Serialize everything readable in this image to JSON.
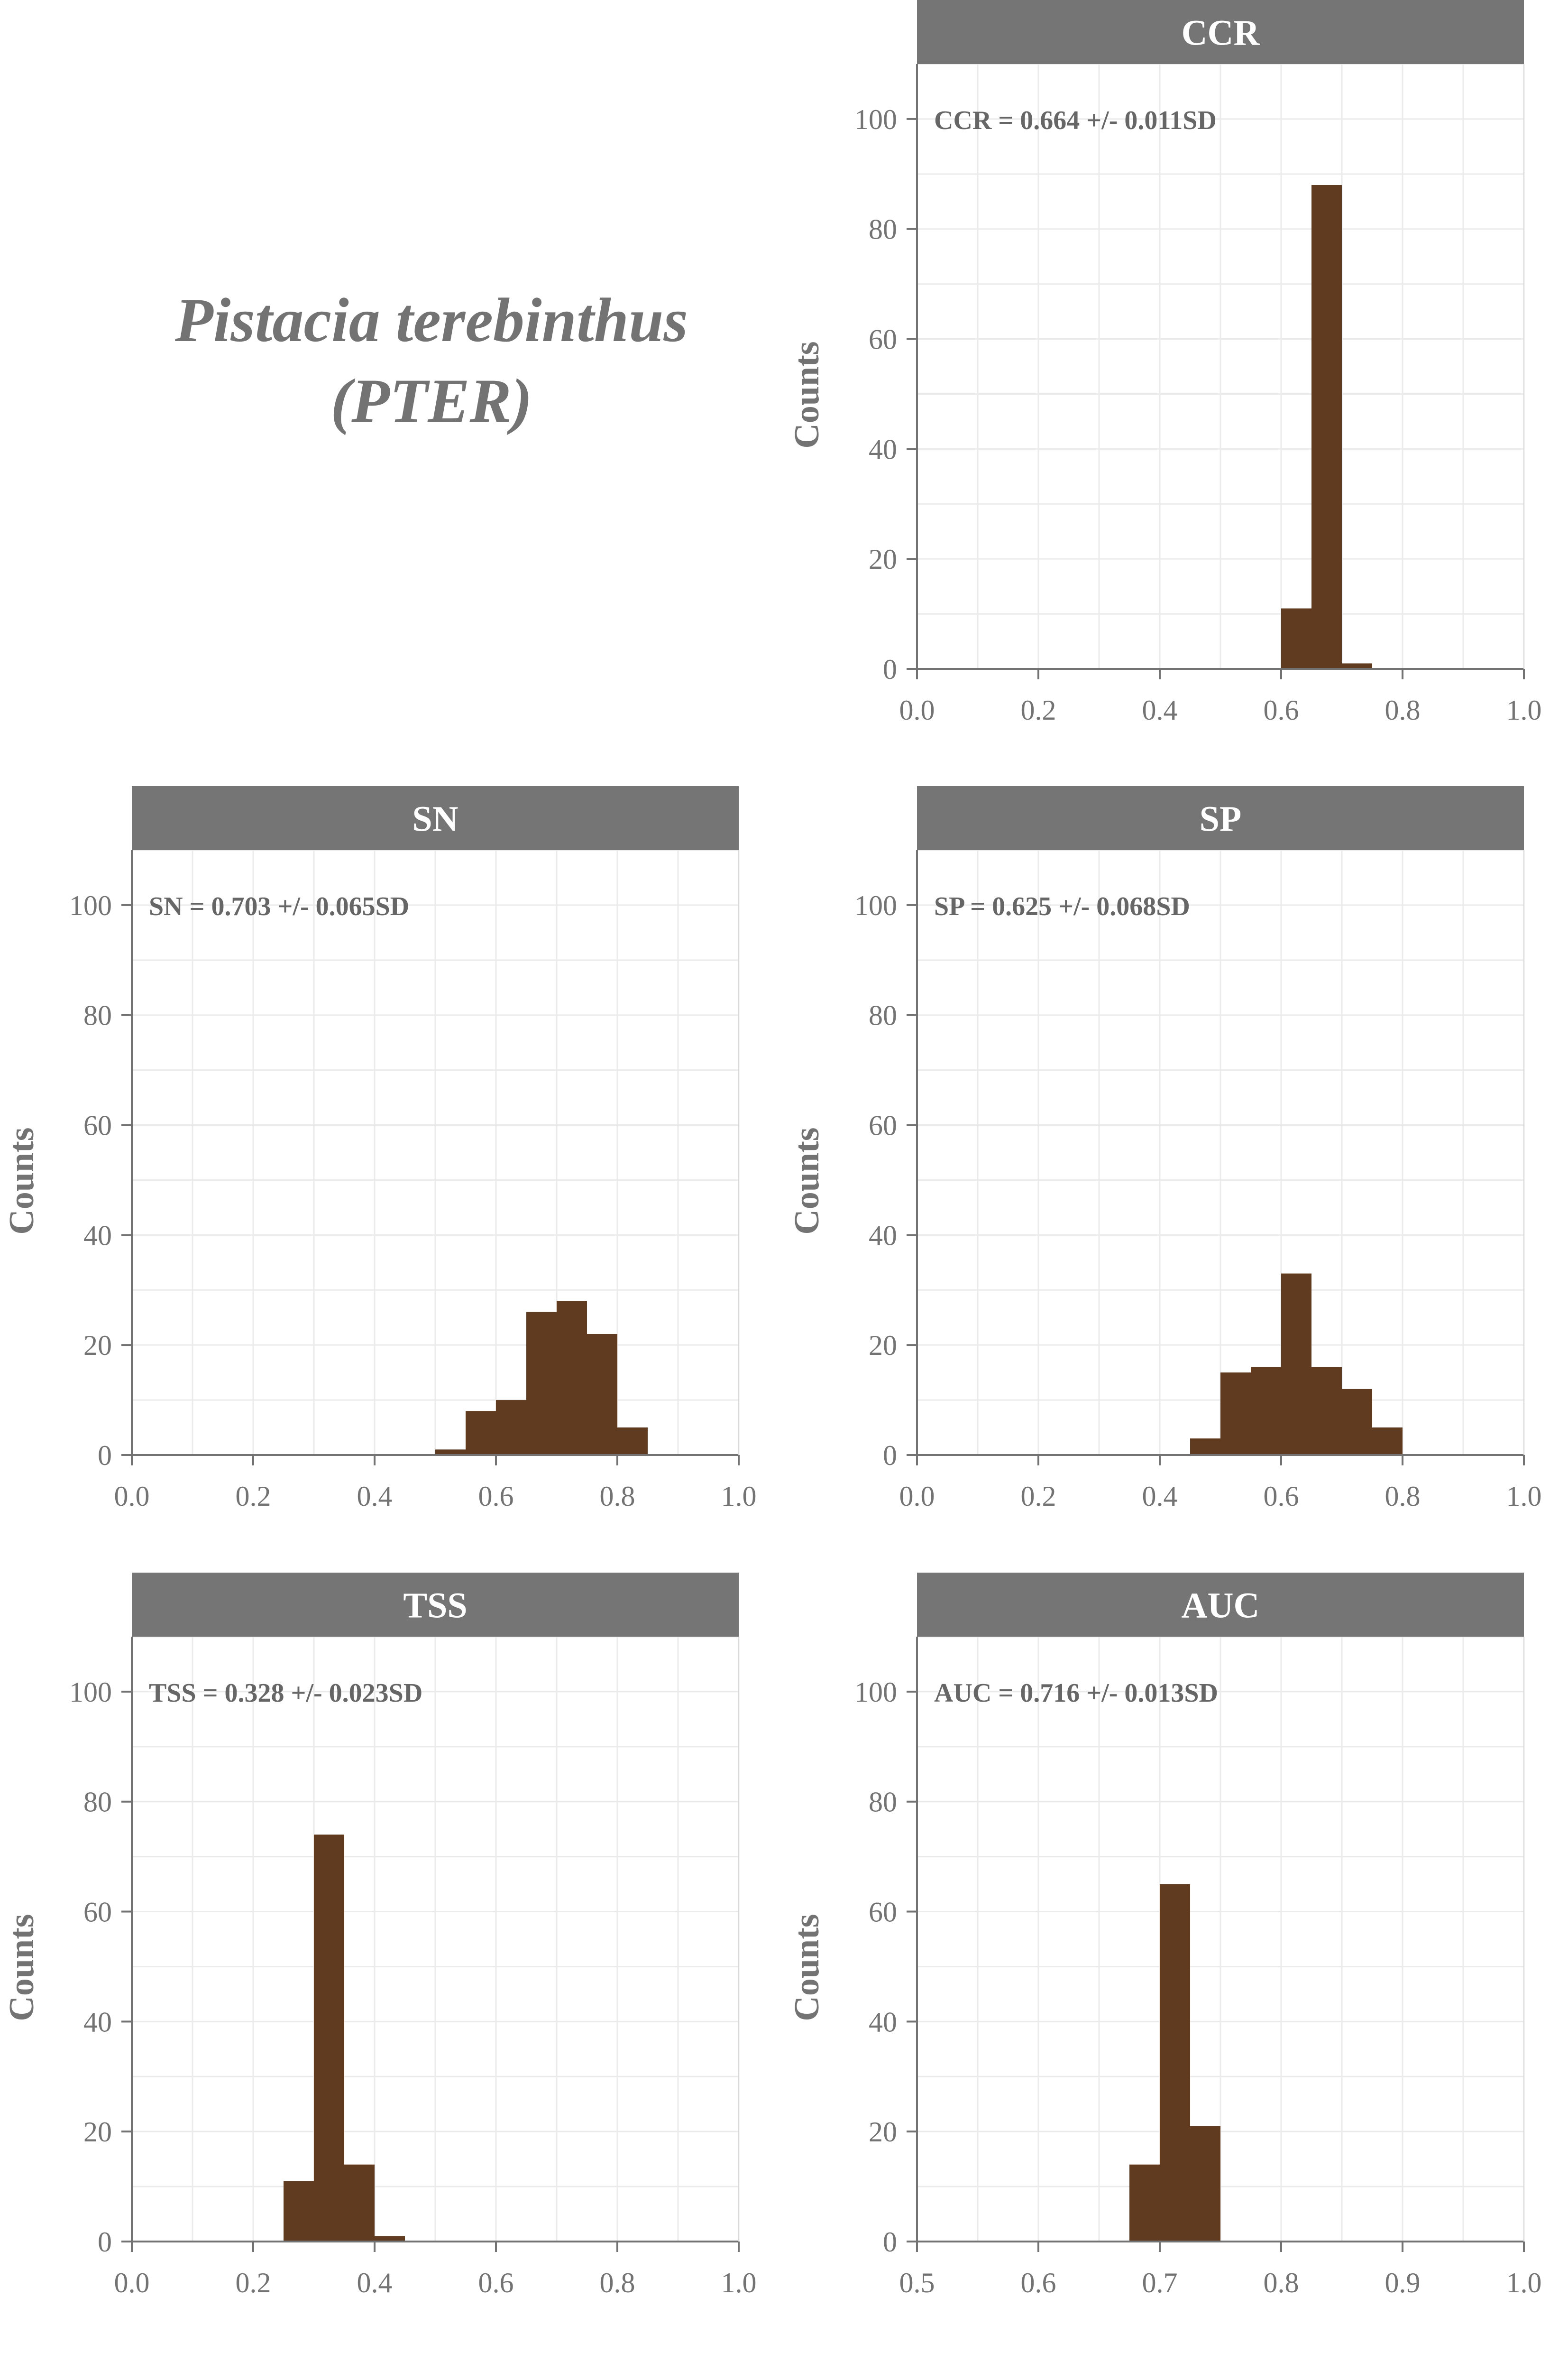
{
  "species": {
    "name": "Pistacia terebinthus",
    "code": "(PTER)"
  },
  "colors": {
    "bar": "#603B1F",
    "strip": "#757575",
    "strip_text": "#ffffff",
    "annotation": "#666666",
    "axis": "#737373",
    "grid": "#ebebeb"
  },
  "chart_data": [
    {
      "type": "bar",
      "title": "CCR",
      "annotation": "CCR = 0.664 +/- 0.011SD",
      "xlabel": "",
      "ylabel": "Counts",
      "xlim": [
        0.0,
        1.0
      ],
      "ylim": [
        0,
        110
      ],
      "x_ticks": [
        "0.0",
        "0.2",
        "0.4",
        "0.6",
        "0.8",
        "1.0"
      ],
      "y_ticks": [
        "0",
        "20",
        "40",
        "60",
        "80",
        "100"
      ],
      "grid": true,
      "bins": [
        {
          "x0": 0.6,
          "x1": 0.65,
          "count": 11
        },
        {
          "x0": 0.65,
          "x1": 0.7,
          "count": 88
        },
        {
          "x0": 0.7,
          "x1": 0.75,
          "count": 1
        }
      ]
    },
    {
      "type": "bar",
      "title": "SN",
      "annotation": "SN = 0.703 +/- 0.065SD",
      "xlabel": "",
      "ylabel": "Counts",
      "xlim": [
        0.0,
        1.0
      ],
      "ylim": [
        0,
        110
      ],
      "x_ticks": [
        "0.0",
        "0.2",
        "0.4",
        "0.6",
        "0.8",
        "1.0"
      ],
      "y_ticks": [
        "0",
        "20",
        "40",
        "60",
        "80",
        "100"
      ],
      "grid": true,
      "bins": [
        {
          "x0": 0.5,
          "x1": 0.55,
          "count": 1
        },
        {
          "x0": 0.55,
          "x1": 0.6,
          "count": 8
        },
        {
          "x0": 0.6,
          "x1": 0.65,
          "count": 10
        },
        {
          "x0": 0.65,
          "x1": 0.7,
          "count": 26
        },
        {
          "x0": 0.7,
          "x1": 0.75,
          "count": 28
        },
        {
          "x0": 0.75,
          "x1": 0.8,
          "count": 22
        },
        {
          "x0": 0.8,
          "x1": 0.85,
          "count": 5
        }
      ]
    },
    {
      "type": "bar",
      "title": "SP",
      "annotation": "SP = 0.625 +/- 0.068SD",
      "xlabel": "",
      "ylabel": "Counts",
      "xlim": [
        0.0,
        1.0
      ],
      "ylim": [
        0,
        110
      ],
      "x_ticks": [
        "0.0",
        "0.2",
        "0.4",
        "0.6",
        "0.8",
        "1.0"
      ],
      "y_ticks": [
        "0",
        "20",
        "40",
        "60",
        "80",
        "100"
      ],
      "grid": true,
      "bins": [
        {
          "x0": 0.45,
          "x1": 0.5,
          "count": 3
        },
        {
          "x0": 0.5,
          "x1": 0.55,
          "count": 15
        },
        {
          "x0": 0.55,
          "x1": 0.6,
          "count": 16
        },
        {
          "x0": 0.6,
          "x1": 0.65,
          "count": 33
        },
        {
          "x0": 0.65,
          "x1": 0.7,
          "count": 16
        },
        {
          "x0": 0.7,
          "x1": 0.75,
          "count": 12
        },
        {
          "x0": 0.75,
          "x1": 0.8,
          "count": 5
        }
      ]
    },
    {
      "type": "bar",
      "title": "TSS",
      "annotation": "TSS = 0.328 +/- 0.023SD",
      "xlabel": "",
      "ylabel": "Counts",
      "xlim": [
        0.0,
        1.0
      ],
      "ylim": [
        0,
        110
      ],
      "x_ticks": [
        "0.0",
        "0.2",
        "0.4",
        "0.6",
        "0.8",
        "1.0"
      ],
      "y_ticks": [
        "0",
        "20",
        "40",
        "60",
        "80",
        "100"
      ],
      "grid": true,
      "bins": [
        {
          "x0": 0.25,
          "x1": 0.3,
          "count": 11
        },
        {
          "x0": 0.3,
          "x1": 0.35,
          "count": 74
        },
        {
          "x0": 0.35,
          "x1": 0.4,
          "count": 14
        },
        {
          "x0": 0.4,
          "x1": 0.45,
          "count": 1
        }
      ]
    },
    {
      "type": "bar",
      "title": "AUC",
      "annotation": "AUC = 0.716 +/- 0.013SD",
      "xlabel": "",
      "ylabel": "Counts",
      "xlim": [
        0.5,
        1.0
      ],
      "ylim": [
        0,
        110
      ],
      "x_ticks": [
        "0.5",
        "0.6",
        "0.7",
        "0.8",
        "0.9",
        "1.0"
      ],
      "y_ticks": [
        "0",
        "20",
        "40",
        "60",
        "80",
        "100"
      ],
      "grid": true,
      "bins": [
        {
          "x0": 0.675,
          "x1": 0.7,
          "count": 14
        },
        {
          "x0": 0.7,
          "x1": 0.725,
          "count": 65
        },
        {
          "x0": 0.725,
          "x1": 0.75,
          "count": 21
        }
      ]
    }
  ]
}
